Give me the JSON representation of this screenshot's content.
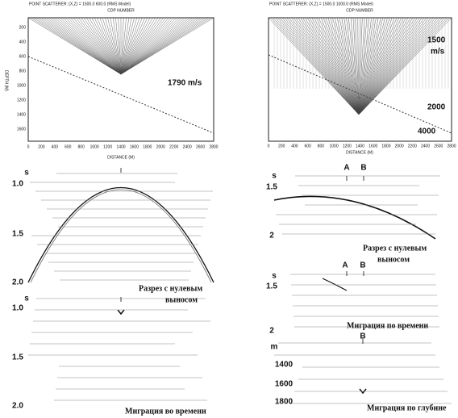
{
  "left": {
    "header": "POINT SCATTERER: (X,Z) = 1500.0 600.0 (RMS Model)",
    "top_axis_title": "CDP NUMBER",
    "y_axis_title": "DEPTH (M)",
    "depth_ticks": [
      "200",
      "400",
      "600",
      "800",
      "1000",
      "1200",
      "1400",
      "1600"
    ],
    "distance_ticks": [
      "0",
      "200",
      "400",
      "600",
      "800",
      "1000",
      "1200",
      "1400",
      "1600",
      "1800",
      "2000",
      "2200",
      "2400",
      "2600",
      "2800"
    ],
    "x_axis_title": "DISTANCE (M)",
    "velocity": "1790 m/s",
    "zero_offset": {
      "unit": "s",
      "ticks": [
        "1.0",
        "1.5",
        "2.0"
      ],
      "caption_1": "Разрез с нулевым",
      "caption_2": "выносом"
    },
    "time_migration": {
      "unit": "s",
      "ticks": [
        "1.0",
        "1.5",
        "2.0"
      ],
      "caption": "Миграция во времени"
    }
  },
  "right": {
    "header": "POINT SCATTERER: (X,Z) = 1500.0 1000.0 (RMS Model)",
    "top_axis_title": "CDP NUMBER",
    "distance_ticks": [
      "0",
      "200",
      "400",
      "600",
      "800",
      "1000",
      "1200",
      "1400",
      "1600",
      "1800",
      "2000",
      "2200",
      "2400",
      "2600",
      "2800"
    ],
    "x_axis_title": "DISTANCE (M)",
    "velocity_top": "1500",
    "velocity_unit": "m/s",
    "velocity_mid": "2000",
    "velocity_bottom": "4000",
    "zero_offset": {
      "unit": "s",
      "ticks": [
        "1.5",
        "2"
      ],
      "point_a": "A",
      "point_b": "B",
      "caption_1": "Разрез с нулевым",
      "caption_2": "выносом"
    },
    "time_migration": {
      "unit": "s",
      "ticks": [
        "1.5",
        "2"
      ],
      "point_a": "A",
      "point_b": "B",
      "caption": "Миграция по времени"
    },
    "depth_migration": {
      "unit": "m",
      "ticks": [
        "1400",
        "1600",
        "1800"
      ],
      "point_b": "B",
      "caption": "Миграция по глубине"
    }
  }
}
